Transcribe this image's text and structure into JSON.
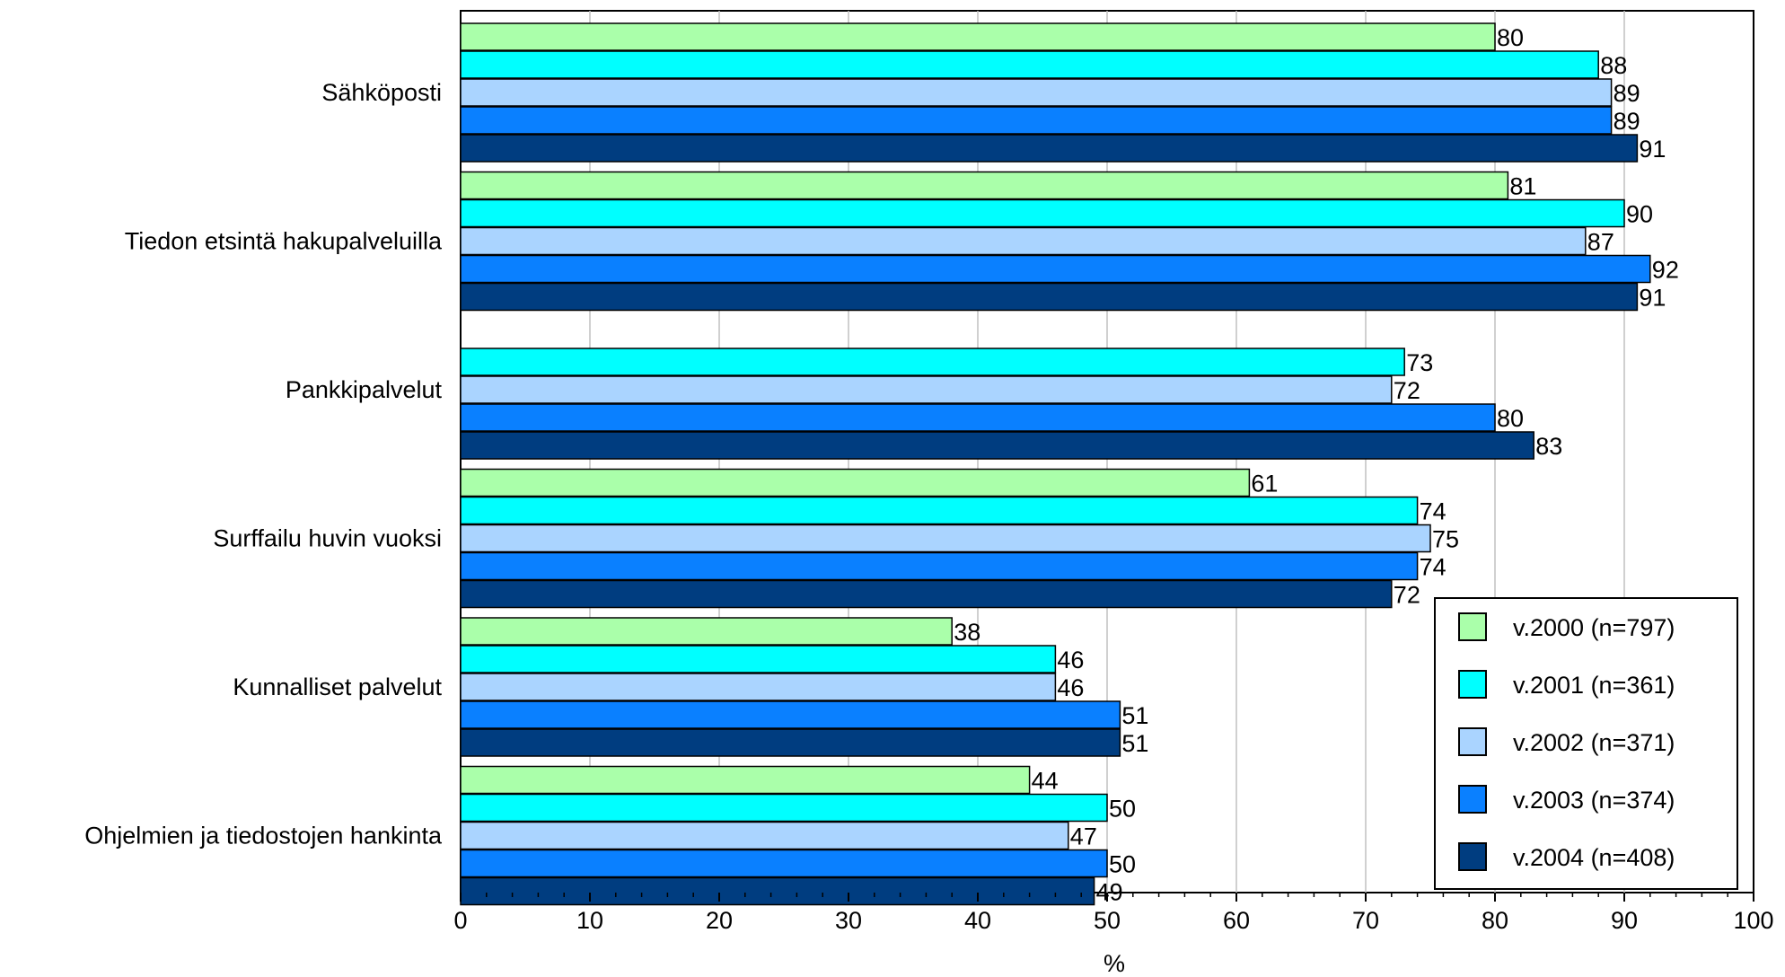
{
  "chart_data": {
    "type": "bar",
    "orientation": "horizontal",
    "categories": [
      "Sähköposti",
      "Tiedon etsintä hakupalveluilla",
      "Pankkipalvelut",
      "Surffailu huvin vuoksi",
      "Kunnalliset palvelut",
      "Ohjelmien ja tiedostojen hankinta"
    ],
    "series": [
      {
        "name": "v.2000 (n=797)",
        "color": "#aaffaa",
        "values": [
          80,
          81,
          null,
          61,
          38,
          44
        ]
      },
      {
        "name": "v.2001 (n=361)",
        "color": "#00ffff",
        "values": [
          88,
          90,
          73,
          74,
          46,
          50
        ]
      },
      {
        "name": "v.2002 (n=371)",
        "color": "#aad4ff",
        "values": [
          89,
          87,
          72,
          75,
          46,
          47
        ]
      },
      {
        "name": "v.2003 (n=374)",
        "color": "#0a80ff",
        "values": [
          89,
          92,
          80,
          74,
          51,
          50
        ]
      },
      {
        "name": "v.2004 (n=408)",
        "color": "#003d80",
        "values": [
          91,
          91,
          83,
          72,
          51,
          49
        ]
      }
    ],
    "xlabel": "%",
    "ylabel": "",
    "title": "",
    "xlim": [
      0,
      100
    ],
    "xticks": [
      0,
      10,
      20,
      30,
      40,
      50,
      60,
      70,
      80,
      90,
      100
    ],
    "grid": "vertical",
    "legend_position": "bottom-right",
    "data_labels": true
  }
}
